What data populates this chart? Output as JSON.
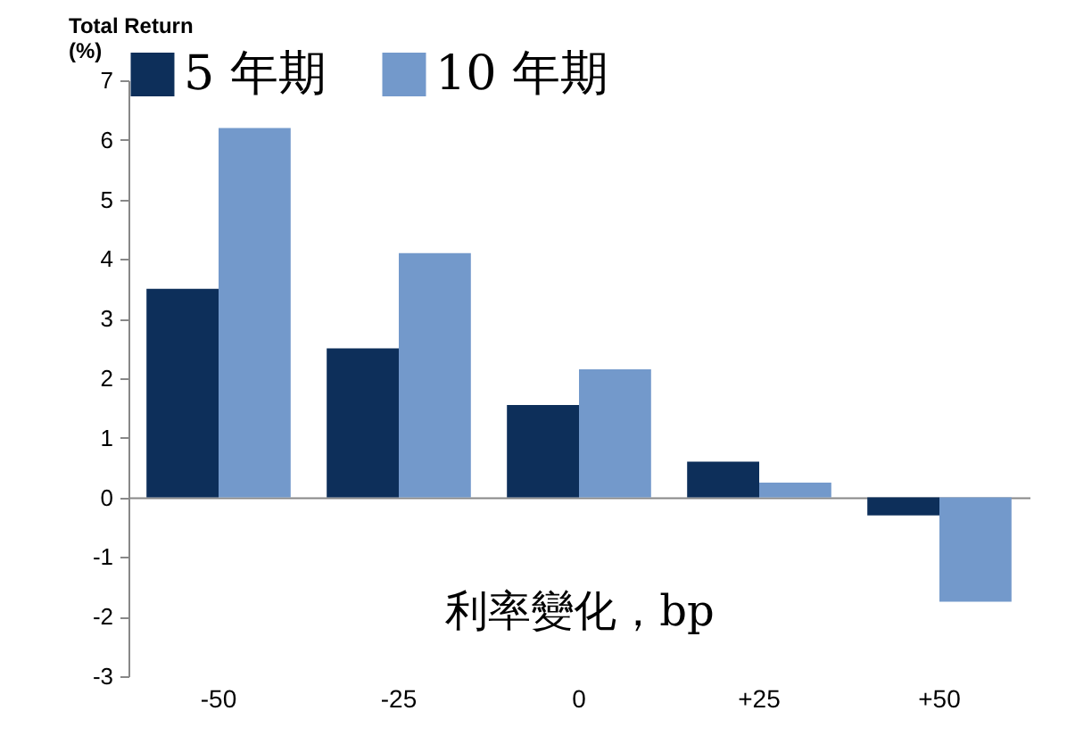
{
  "chart_data": {
    "type": "bar",
    "xlabel": "利率變化，bp",
    "ylabel": "Total Return (%)",
    "categories": [
      "-50",
      "-25",
      "0",
      "+25",
      "+50"
    ],
    "series": [
      {
        "name": "5 年期",
        "color": "#0d2f5a",
        "values": [
          3.5,
          2.5,
          1.55,
          0.6,
          -0.3
        ]
      },
      {
        "name": "10 年期",
        "color": "#7399cb",
        "values": [
          6.2,
          4.1,
          2.15,
          0.25,
          -1.75
        ]
      }
    ],
    "ylim": [
      -3,
      7
    ],
    "yticks": [
      -3,
      -2,
      -1,
      0,
      1,
      2,
      3,
      4,
      5,
      6,
      7
    ],
    "legend": "top"
  }
}
